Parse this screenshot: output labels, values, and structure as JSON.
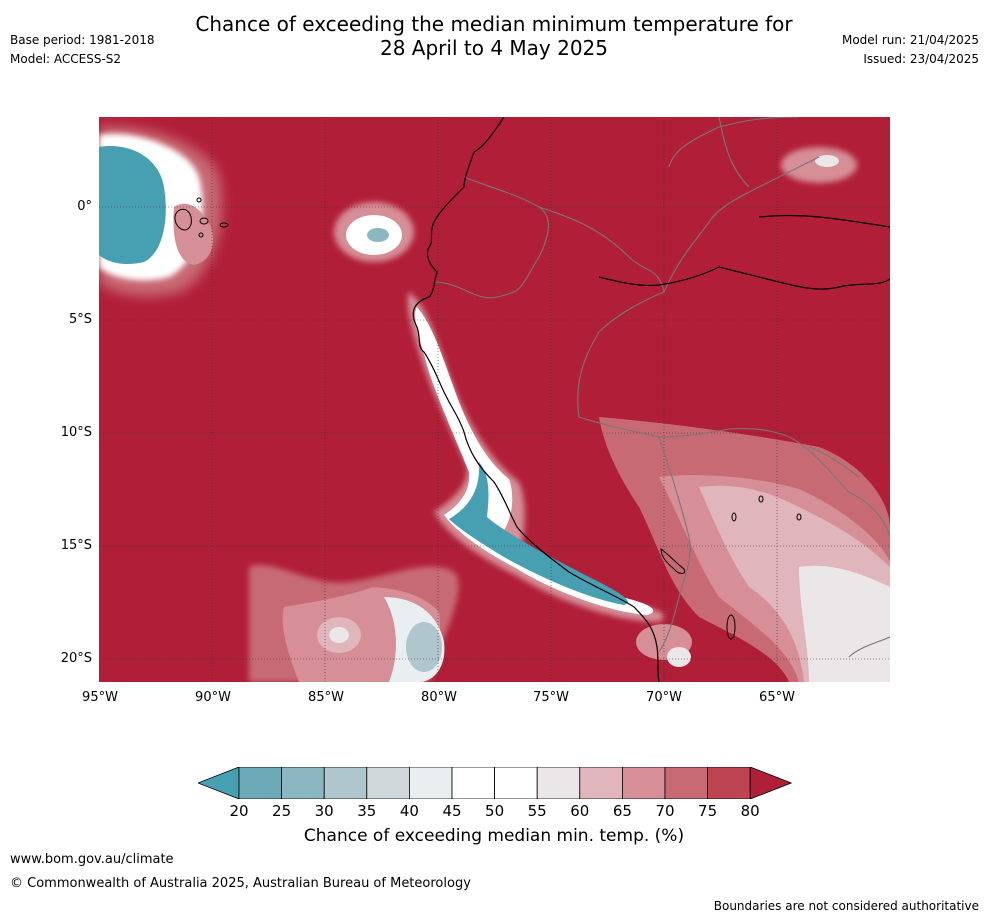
{
  "header": {
    "title_line1": "Chance of exceeding the median minimum temperature for",
    "title_line2": "28 April to 4 May 2025",
    "base_period": "Base period: 1981-2018",
    "model": "Model: ACCESS-S2",
    "model_run": "Model run: 21/04/2025",
    "issued": "Issued: 23/04/2025"
  },
  "map": {
    "lat_labels": [
      "0°",
      "5°S",
      "10°S",
      "15°S",
      "20°S"
    ],
    "lon_labels": [
      "95°W",
      "90°W",
      "85°W",
      "80°W",
      "75°W",
      "70°W",
      "65°W"
    ],
    "background_color": "#b11e38"
  },
  "colorbar": {
    "ticks": [
      "20",
      "25",
      "30",
      "35",
      "40",
      "45",
      "50",
      "55",
      "60",
      "65",
      "70",
      "75",
      "80"
    ],
    "colors": [
      "#46a0b2",
      "#6baab6",
      "#8bb7c1",
      "#aec6cc",
      "#d0d8db",
      "#e9eef1",
      "#ffffff",
      "#ffffff",
      "#ebe6e7",
      "#e0b5bb",
      "#d68e97",
      "#c86a74",
      "#bd4451",
      "#b11e38"
    ],
    "label": "Chance of exceeding median min. temp. (%)"
  },
  "footer": {
    "url": "www.bom.gov.au/climate",
    "copyright": "© Commonwealth of Australia 2025, Australian Bureau of Meteorology",
    "disclaimer": "Boundaries are not considered authoritative"
  }
}
